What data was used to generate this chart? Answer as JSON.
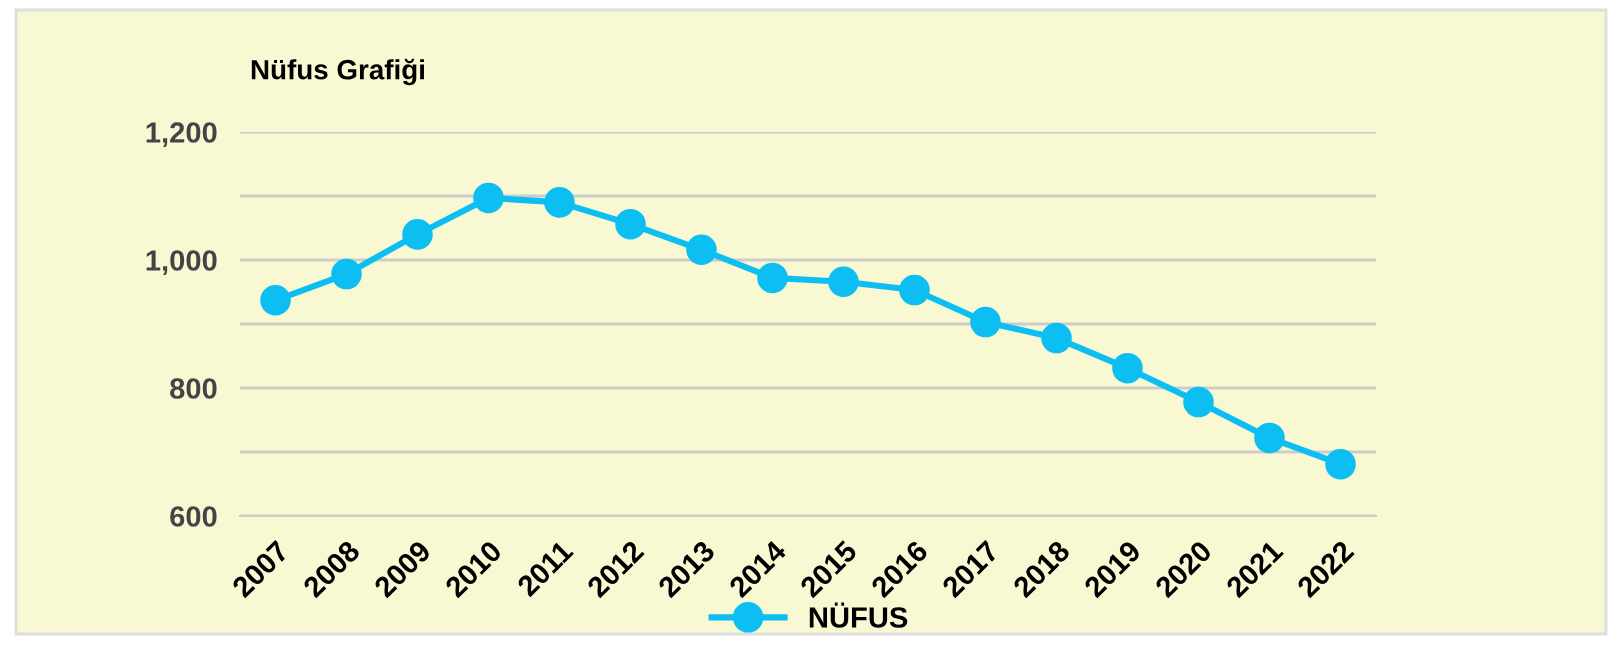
{
  "chart_data": {
    "type": "line",
    "title": "Nüfus Grafiği",
    "categories": [
      "2007",
      "2008",
      "2009",
      "2010",
      "2011",
      "2012",
      "2013",
      "2014",
      "2015",
      "2016",
      "2017",
      "2018",
      "2019",
      "2020",
      "2021",
      "2022"
    ],
    "series": [
      {
        "name": "NÜFUS",
        "color": "#0dbef2",
        "values": [
          937,
          978,
          1040,
          1097,
          1090,
          1056,
          1016,
          972,
          966,
          953,
          903,
          878,
          831,
          778,
          722,
          681
        ]
      }
    ],
    "ylim": [
      600,
      1200
    ],
    "yticks": [
      600,
      {
        "value": 700,
        "label": null
      },
      800,
      {
        "value": 900,
        "label": null
      },
      {
        "value": 1000,
        "label": "1,000"
      },
      {
        "value": 1100,
        "label": null
      },
      {
        "value": 1200,
        "label": "1,200"
      }
    ],
    "grid": "y",
    "legend": "bottom",
    "marker": "circle",
    "line_style": "solid"
  }
}
